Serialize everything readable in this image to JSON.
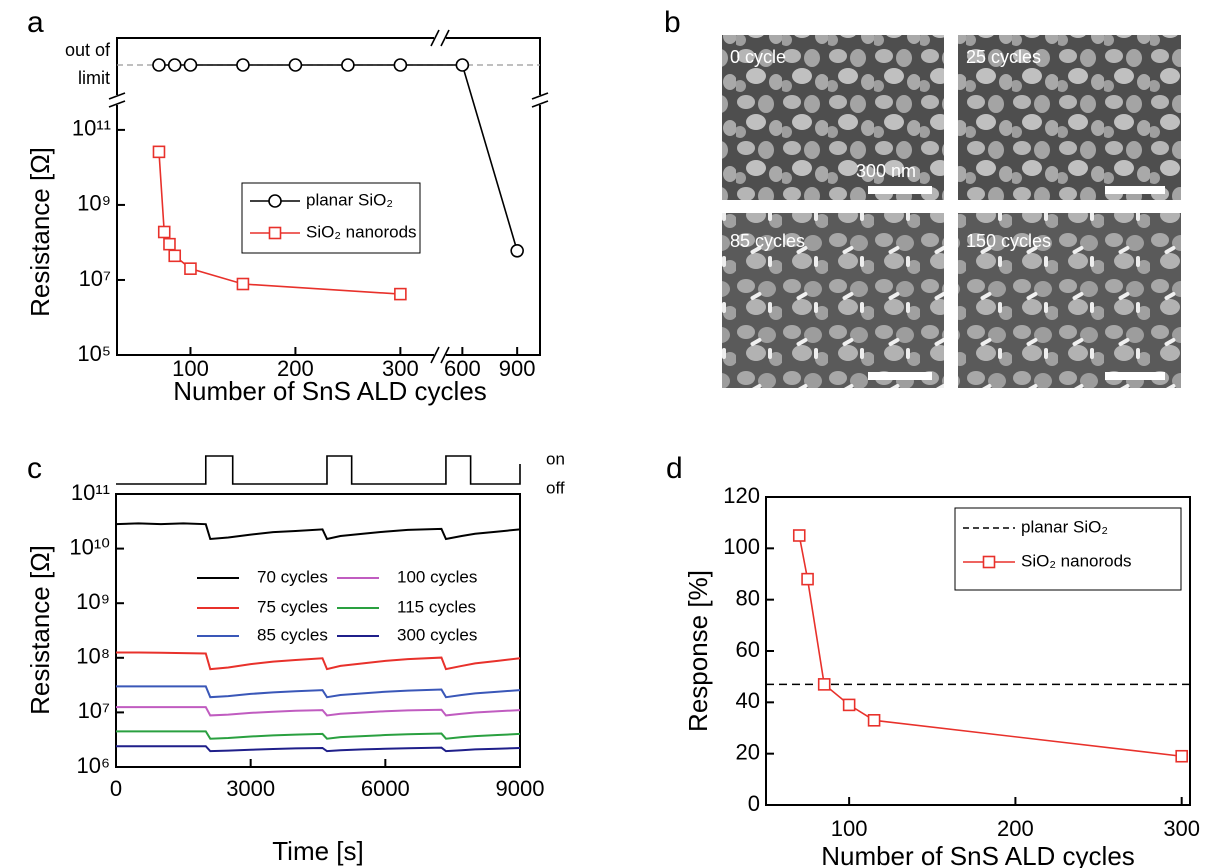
{
  "chart_data": [
    {
      "panel_label": "a",
      "type": "line",
      "y_scale": "log",
      "x_label": "Number of SnS ALD cycles",
      "y_label": "Resistance [Ω]",
      "x_segments": [
        {
          "xlim": [
            30,
            333
          ],
          "xticks": [
            100,
            200,
            300
          ]
        },
        {
          "xlim": [
            505,
            1025
          ],
          "xticks": [
            600,
            900
          ]
        }
      ],
      "ylim": [
        100000,
        300000000000
      ],
      "yticks": [
        {
          "value": 100000,
          "label": "10⁵"
        },
        {
          "value": 10000000,
          "label": "10⁷"
        },
        {
          "value": 1000000000,
          "label": "10⁹"
        },
        {
          "value": 100000000000,
          "label": "10¹¹"
        }
      ],
      "y_break_label": "out of limit",
      "series": [
        {
          "name": "planar SiO₂",
          "color": "#000000",
          "marker": "circle",
          "x": [
            70,
            85,
            100,
            150,
            200,
            250,
            300,
            600,
            900
          ],
          "values": [
            null,
            null,
            null,
            null,
            null,
            null,
            null,
            null,
            60000000
          ],
          "out_of_limit": [
            true,
            true,
            true,
            true,
            true,
            true,
            true,
            true,
            false
          ]
        },
        {
          "name": "SiO₂ nanorods",
          "color": "#e8312b",
          "marker": "square",
          "x": [
            70,
            75,
            80,
            85,
            100,
            150,
            300
          ],
          "values": [
            26000000000,
            190000000,
            90000000,
            44000000,
            20000000,
            7800000,
            4200000
          ]
        }
      ]
    },
    {
      "panel_label": "c",
      "type": "line",
      "y_scale": "log",
      "x_label": "Time [s]",
      "y_label": "Resistance [Ω]",
      "xlim": [
        0,
        9000
      ],
      "xticks": [
        0,
        3000,
        6000,
        9000
      ],
      "ylim": [
        1000000,
        100000000000
      ],
      "yticks": [
        {
          "value": 1000000,
          "label": "10⁶"
        },
        {
          "value": 10000000,
          "label": "10⁷"
        },
        {
          "value": 100000000,
          "label": "10⁸"
        },
        {
          "value": 1000000000,
          "label": "10⁹"
        },
        {
          "value": 10000000000,
          "label": "10¹⁰"
        },
        {
          "value": 100000000000,
          "label": "10¹¹"
        }
      ],
      "light": {
        "states": [
          "on",
          "off"
        ],
        "on_periods": [
          [
            2000,
            2600
          ],
          [
            4700,
            5250
          ],
          [
            7350,
            7900
          ]
        ]
      },
      "x": [
        0,
        500,
        1000,
        1500,
        2000,
        2100,
        2500,
        3000,
        3500,
        4000,
        4600,
        4700,
        5000,
        5500,
        6000,
        6500,
        7250,
        7350,
        7700,
        8000,
        8500,
        9000
      ],
      "series": [
        {
          "name": "70 cycles",
          "color": "#000000",
          "values": [
            28000000000,
            29000000000,
            28000000000,
            29000000000,
            28000000000,
            15000000000,
            16000000000,
            18000000000,
            20000000000,
            21000000000,
            22500000000,
            15000000000,
            17000000000,
            18700000000,
            20500000000,
            22000000000,
            23000000000,
            15000000000,
            17000000000,
            18700000000,
            20500000000,
            22500000000
          ]
        },
        {
          "name": "75 cycles",
          "color": "#e8312b",
          "values": [
            125000000,
            125000000,
            124000000,
            122000000,
            120000000,
            62000000,
            66500000,
            76500000,
            85000000,
            91000000,
            98000000,
            62000000,
            71000000,
            79000000,
            88000000,
            94500000,
            101000000,
            62000000,
            71000000,
            79000000,
            88000000,
            98000000
          ]
        },
        {
          "name": "85 cycles",
          "color": "#3a57b8",
          "values": [
            30000000,
            30000000,
            30000000,
            30000000,
            30000000,
            19000000,
            19900000,
            21800000,
            23300000,
            24400000,
            25600000,
            19000000,
            20800000,
            22300000,
            23900000,
            25000000,
            26200000,
            19000000,
            20800000,
            22300000,
            23900000,
            25600000
          ]
        },
        {
          "name": "100 cycles",
          "color": "#c05cc0",
          "values": [
            12500000,
            12500000,
            12500000,
            12500000,
            12500000,
            8800000,
            9100000,
            9800000,
            10300000,
            10700000,
            11000000,
            8800000,
            9440000,
            9950000,
            10500000,
            10900000,
            11200000,
            8800000,
            9440000,
            9950000,
            10500000,
            11000000
          ]
        },
        {
          "name": "115 cycles",
          "color": "#2aa040",
          "values": [
            4500000,
            4500000,
            4500000,
            4500000,
            4500000,
            3300000,
            3400000,
            3620000,
            3800000,
            3920000,
            4040000,
            3300000,
            3520000,
            3680000,
            3850000,
            3970000,
            4100000,
            3300000,
            3520000,
            3680000,
            3850000,
            4040000
          ]
        },
        {
          "name": "300 cycles",
          "color": "#1f1f8a",
          "values": [
            2400000,
            2400000,
            2400000,
            2400000,
            2400000,
            1950000,
            1990000,
            2070000,
            2140000,
            2190000,
            2230000,
            1950000,
            2030000,
            2100000,
            2160000,
            2210000,
            2260000,
            1950000,
            2030000,
            2100000,
            2160000,
            2230000
          ]
        }
      ]
    },
    {
      "panel_label": "d",
      "type": "line",
      "x_label": "Number of SnS ALD cycles",
      "y_label": "Response [%]",
      "xlim": [
        50,
        305
      ],
      "xticks": [
        100,
        200,
        300
      ],
      "ylim": [
        0,
        120
      ],
      "yticks": [
        0,
        20,
        40,
        60,
        80,
        100,
        120
      ],
      "series": [
        {
          "name": "planar SiO₂",
          "color": "#000000",
          "dash": true,
          "values": [
            47
          ]
        },
        {
          "name": "SiO₂ nanorods",
          "color": "#e8312b",
          "marker": "square",
          "x": [
            70,
            75,
            85,
            100,
            115,
            300
          ],
          "values": [
            105,
            88,
            47,
            39,
            33,
            19
          ]
        }
      ]
    }
  ],
  "micrographs": {
    "panel_label": "b",
    "images": [
      {
        "label": "0 cycle"
      },
      {
        "label": "25 cycles"
      },
      {
        "label": "85 cycles"
      },
      {
        "label": "150 cycles"
      }
    ],
    "scale_bar": "300 nm"
  }
}
